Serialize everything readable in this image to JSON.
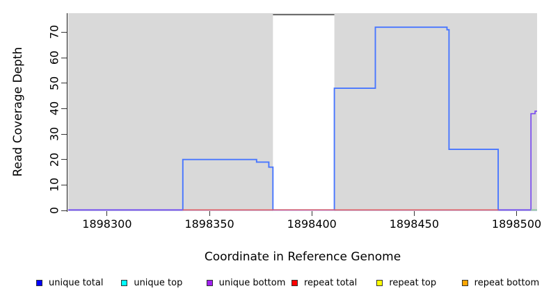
{
  "figure": {
    "background": "#ffffff",
    "plot_background": "#d9d9d9",
    "axis_color": "#111111",
    "tick_color": "#333333"
  },
  "chart_data": {
    "type": "line",
    "subtype": "step-coverage-plot",
    "title": "",
    "xlabel": "Coordinate in Reference Genome",
    "ylabel": "Read Coverage Depth",
    "xlim": [
      1898281,
      1898510
    ],
    "ylim": [
      0,
      77.5
    ],
    "x_ticks": [
      1898300,
      1898350,
      1898400,
      1898450,
      1898500
    ],
    "y_ticks": [
      0,
      10,
      20,
      30,
      40,
      50,
      60,
      70
    ],
    "grid": false,
    "legend_position": "bottom",
    "no_data_region": {
      "from": 1898381,
      "to": 1898411,
      "fill": "#ffffff",
      "top_edge_color": "#6e6e6e"
    },
    "series": [
      {
        "name": "unique top",
        "color": "#00ffff",
        "width": 1.2,
        "points": [
          [
            1898281,
            0
          ],
          [
            1898510,
            0
          ]
        ]
      },
      {
        "name": "unique total",
        "color": "#4876ff",
        "width": 1.9,
        "points": [
          [
            1898281,
            0
          ],
          [
            1898337,
            0
          ],
          [
            1898337,
            20
          ],
          [
            1898373,
            20
          ],
          [
            1898373,
            19
          ],
          [
            1898379,
            19
          ],
          [
            1898379,
            17
          ],
          [
            1898381,
            17
          ],
          [
            1898381,
            0
          ],
          [
            1898411,
            0
          ],
          [
            1898411,
            48
          ],
          [
            1898431,
            48
          ],
          [
            1898431,
            72
          ],
          [
            1898466,
            72
          ],
          [
            1898466,
            71
          ],
          [
            1898467,
            71
          ],
          [
            1898467,
            24
          ],
          [
            1898491,
            24
          ],
          [
            1898491,
            0
          ],
          [
            1898510,
            0
          ]
        ]
      },
      {
        "name": "unique bottom",
        "color": "#7a4bef",
        "width": 1.7,
        "points": [
          [
            1898281,
            0
          ],
          [
            1898507,
            0
          ],
          [
            1898507,
            38
          ],
          [
            1898509,
            38
          ],
          [
            1898509,
            39
          ],
          [
            1898510,
            39
          ]
        ]
      },
      {
        "name": "repeat top",
        "color": "#ffff00",
        "width": 1.2,
        "points": [
          [
            1898337,
            0
          ],
          [
            1898491,
            0
          ]
        ]
      },
      {
        "name": "repeat bottom",
        "color": "#ffa500",
        "width": 1.2,
        "points": [
          [
            1898337,
            0
          ],
          [
            1898491,
            0
          ]
        ]
      },
      {
        "name": "repeat total",
        "color": "#e05169",
        "width": 1.3,
        "points": [
          [
            1898337,
            0
          ],
          [
            1898491,
            0
          ]
        ]
      }
    ],
    "overlap_artifact": {
      "color": "#9ed896",
      "width": 1.5,
      "points": [
        [
          1898507,
          0
        ],
        [
          1898510,
          0
        ]
      ]
    }
  },
  "legend": {
    "items": [
      {
        "label": "unique total",
        "color": "#0000ff"
      },
      {
        "label": "unique top",
        "color": "#00ffff"
      },
      {
        "label": "unique bottom",
        "color": "#a020f0"
      },
      {
        "label": "repeat total",
        "color": "#ff0000"
      },
      {
        "label": "repeat top",
        "color": "#ffff00"
      },
      {
        "label": "repeat bottom",
        "color": "#ffa500"
      }
    ]
  }
}
